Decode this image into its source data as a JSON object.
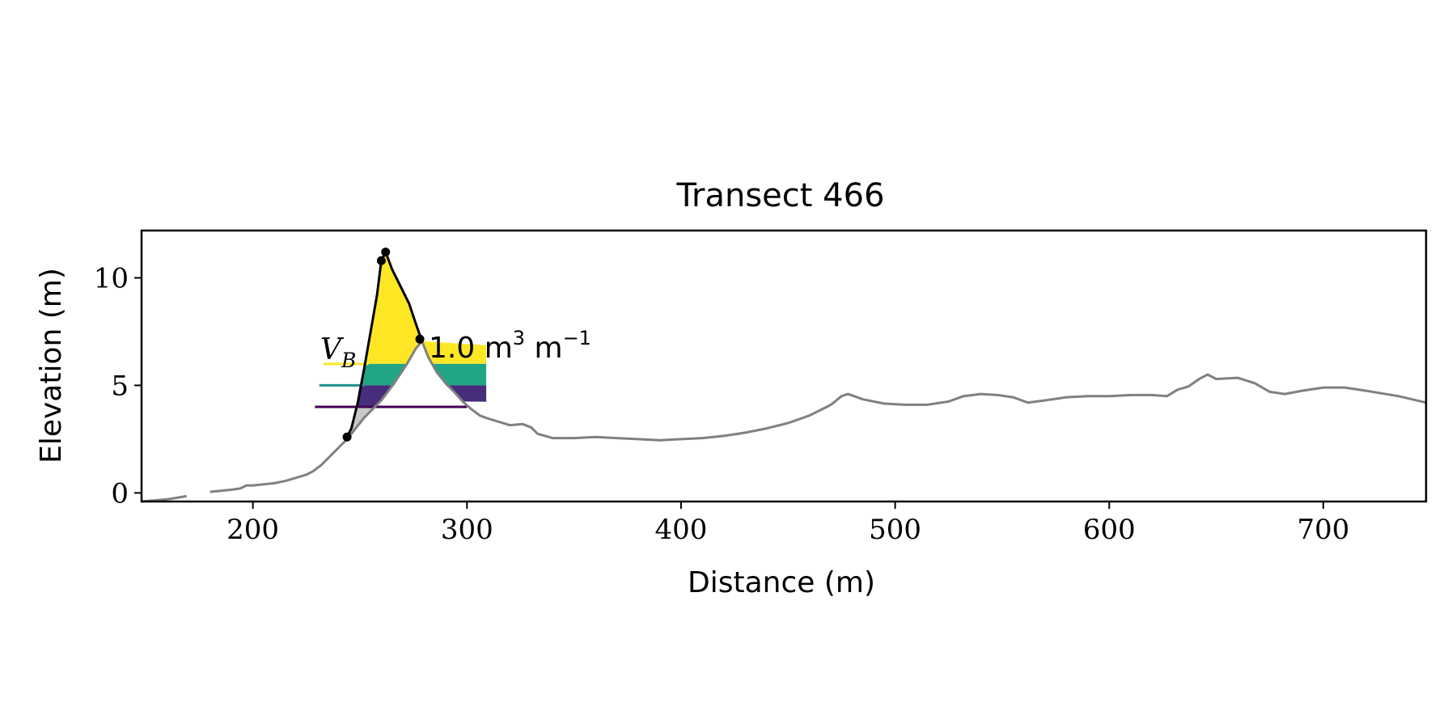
{
  "chart_data": {
    "type": "line",
    "title": "Transect 466",
    "xlabel": "Distance (m)",
    "ylabel": "Elevation (m)",
    "xlim": [
      148,
      748
    ],
    "ylim": [
      -0.4,
      12.2
    ],
    "xticks": [
      200,
      300,
      400,
      500,
      600,
      700
    ],
    "yticks": [
      0,
      5,
      10
    ],
    "xtick_labels": [
      "200",
      "300",
      "400",
      "500",
      "600",
      "700"
    ],
    "ytick_labels": [
      "0",
      "5",
      "10"
    ],
    "grid": false,
    "annotation": {
      "symbol": "V",
      "subscript": "B",
      "value_text": "1.0 m",
      "unit_sup1": "3",
      "unit_mid": " m",
      "unit_sup2": "−1"
    },
    "colors": {
      "profile": "#808080",
      "dune_outline": "#000000",
      "fill_top": "#fde725",
      "fill_mid": "#21a585",
      "fill_low": "#472d7b",
      "line_top": "#fde725",
      "line_mid": "#21918c",
      "line_low": "#440154",
      "underfill": "#c8c8c8"
    },
    "profile_segments": [
      [
        [
          148,
          -0.4
        ],
        [
          160,
          -0.3
        ],
        [
          169,
          -0.15
        ]
      ],
      [
        [
          180,
          0.05
        ],
        [
          185,
          0.1
        ],
        [
          190,
          0.15
        ],
        [
          194,
          0.2
        ],
        [
          197,
          0.35
        ],
        [
          200,
          0.35
        ],
        [
          205,
          0.4
        ],
        [
          210,
          0.45
        ],
        [
          215,
          0.55
        ],
        [
          220,
          0.7
        ],
        [
          225,
          0.85
        ],
        [
          228,
          1.0
        ],
        [
          232,
          1.3
        ],
        [
          236,
          1.7
        ],
        [
          240,
          2.1
        ],
        [
          244,
          2.5
        ],
        [
          248,
          3.0
        ],
        [
          252,
          3.5
        ],
        [
          256,
          3.9
        ],
        [
          260,
          4.3
        ],
        [
          266,
          5.1
        ],
        [
          272,
          6.0
        ],
        [
          276,
          6.7
        ],
        [
          279,
          7.05
        ],
        [
          282,
          6.3
        ],
        [
          286,
          5.6
        ],
        [
          290,
          5.1
        ],
        [
          294,
          4.7
        ],
        [
          298,
          4.25
        ],
        [
          302,
          3.9
        ],
        [
          306,
          3.6
        ],
        [
          310,
          3.45
        ],
        [
          315,
          3.3
        ],
        [
          320,
          3.15
        ],
        [
          326,
          3.2
        ],
        [
          330,
          3.05
        ],
        [
          333,
          2.75
        ],
        [
          340,
          2.55
        ],
        [
          350,
          2.55
        ],
        [
          360,
          2.6
        ],
        [
          370,
          2.55
        ],
        [
          380,
          2.5
        ],
        [
          390,
          2.45
        ],
        [
          400,
          2.5
        ],
        [
          410,
          2.55
        ],
        [
          420,
          2.65
        ],
        [
          430,
          2.8
        ],
        [
          440,
          3.0
        ],
        [
          450,
          3.25
        ],
        [
          460,
          3.6
        ],
        [
          470,
          4.1
        ],
        [
          475,
          4.5
        ],
        [
          478,
          4.6
        ],
        [
          485,
          4.35
        ],
        [
          495,
          4.15
        ],
        [
          505,
          4.1
        ],
        [
          515,
          4.1
        ],
        [
          525,
          4.25
        ],
        [
          532,
          4.5
        ],
        [
          540,
          4.6
        ],
        [
          548,
          4.55
        ],
        [
          555,
          4.45
        ],
        [
          562,
          4.2
        ],
        [
          570,
          4.3
        ],
        [
          580,
          4.45
        ],
        [
          590,
          4.5
        ],
        [
          600,
          4.5
        ],
        [
          610,
          4.55
        ],
        [
          620,
          4.55
        ],
        [
          627,
          4.5
        ],
        [
          632,
          4.8
        ],
        [
          637,
          4.95
        ],
        [
          642,
          5.3
        ],
        [
          646,
          5.5
        ],
        [
          650,
          5.3
        ],
        [
          660,
          5.35
        ],
        [
          668,
          5.1
        ],
        [
          675,
          4.7
        ],
        [
          682,
          4.6
        ],
        [
          690,
          4.75
        ],
        [
          700,
          4.9
        ],
        [
          710,
          4.9
        ],
        [
          720,
          4.75
        ],
        [
          735,
          4.5
        ],
        [
          748,
          4.2
        ]
      ]
    ],
    "dune_outline": [
      [
        244,
        2.6
      ],
      [
        246,
        3.0
      ],
      [
        249,
        4.2
      ],
      [
        252,
        5.8
      ],
      [
        255,
        7.5
      ],
      [
        258,
        9.2
      ],
      [
        260,
        10.8
      ],
      [
        262,
        11.2
      ],
      [
        265,
        10.4
      ],
      [
        269,
        9.6
      ],
      [
        273,
        8.8
      ],
      [
        276,
        7.9
      ],
      [
        279,
        7.05
      ]
    ],
    "dune_points": [
      [
        244,
        2.6
      ],
      [
        260,
        10.8
      ],
      [
        262,
        11.2
      ],
      [
        278,
        7.15
      ]
    ],
    "level_lines": [
      {
        "name": "top",
        "y": 6.0,
        "x0": 233,
        "x1": 254
      },
      {
        "name": "mid",
        "y": 5.0,
        "x0": 231,
        "x1": 252
      },
      {
        "name": "low",
        "y": 4.0,
        "x0": 229,
        "x1": 300
      }
    ],
    "fill_levels": [
      6.0,
      5.0,
      4.0
    ]
  }
}
